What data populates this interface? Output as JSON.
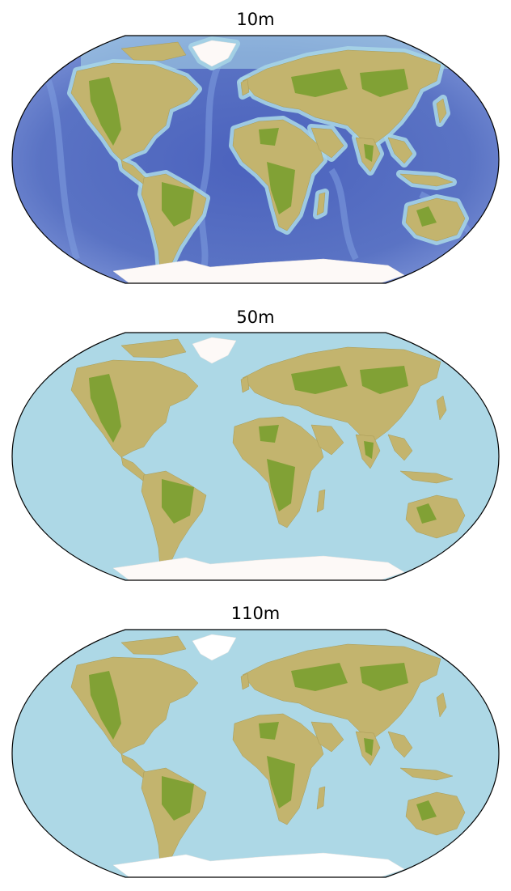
{
  "figure": {
    "projection": "Robinson",
    "panels": [
      {
        "title": "10m",
        "ocean_style": "bathymetry",
        "ocean_color": "#5a73c4",
        "shelf_color": "#a6d4e6",
        "land_color": "#c3b46e",
        "lowland_color": "#7a9e2f",
        "ice_color": "#fdf9f7"
      },
      {
        "title": "50m",
        "ocean_style": "flat",
        "ocean_color": "#add8e6",
        "land_color": "#c3b46e",
        "lowland_color": "#7a9e2f",
        "ice_color": "#fdf9f7"
      },
      {
        "title": "110m",
        "ocean_style": "flat",
        "ocean_color": "#add8e6",
        "land_color": "#c3b46e",
        "lowland_color": "#7a9e2f",
        "ice_color": "#ffffff"
      }
    ]
  }
}
